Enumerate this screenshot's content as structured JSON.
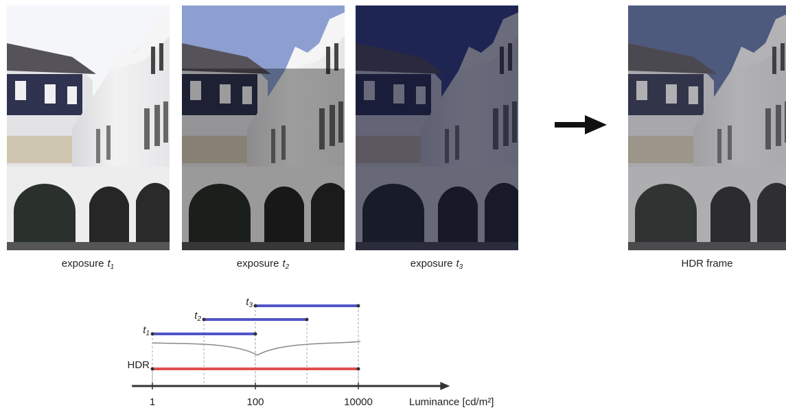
{
  "figure": {
    "images": [
      {
        "caption": "exposure",
        "var": "t",
        "sub": "1"
      },
      {
        "caption": "exposure",
        "var": "t",
        "sub": "2"
      },
      {
        "caption": "exposure",
        "var": "t",
        "sub": "3"
      },
      {
        "caption": "HDR frame"
      }
    ]
  },
  "chart_data": {
    "type": "range",
    "xlabel": "Luminance [cd/m²]",
    "log_x": true,
    "xlim": [
      0.4,
      600000
    ],
    "xticks": [
      1,
      100,
      10000
    ],
    "ranges": [
      {
        "var": "t",
        "sub": "3",
        "start": 100,
        "end": 10000,
        "color": "#5055c8"
      },
      {
        "var": "t",
        "sub": "2",
        "start": 10,
        "end": 1000,
        "color": "#5055c8"
      },
      {
        "var": "t",
        "sub": "1",
        "start": 1,
        "end": 100,
        "color": "#5055c8"
      },
      {
        "label": "HDR",
        "start": 1,
        "end": 10000,
        "color": "#e0504f"
      }
    ]
  }
}
